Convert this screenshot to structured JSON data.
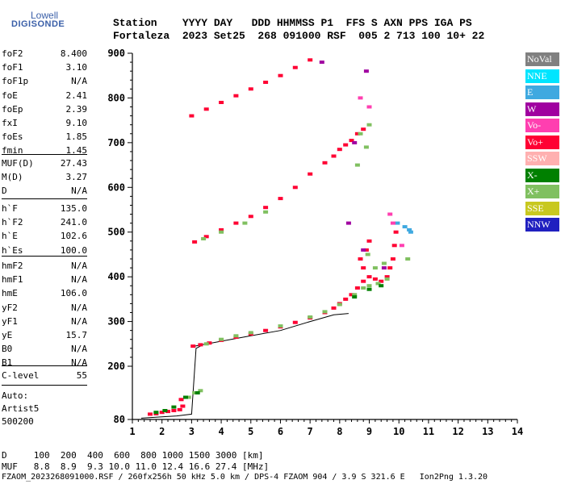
{
  "logo": {
    "line1": "Lowell",
    "line2": "DIGISONDE"
  },
  "header": {
    "row1": "Station    YYYY DAY   DDD HHMMSS P1  FFS S AXN PPS IGA PS",
    "row2": "Fortaleza  2023 Set25  268 091000 RSF  005 2 713 100 10+ 22"
  },
  "params_a": [
    {
      "key": "foF2",
      "value": "8.400"
    },
    {
      "key": "foF1",
      "value": "3.10"
    },
    {
      "key": "foF1p",
      "value": "N/A"
    },
    {
      "key": "foE",
      "value": "2.41"
    },
    {
      "key": "foEp",
      "value": "2.39"
    },
    {
      "key": "fxI",
      "value": "9.10"
    },
    {
      "key": "foEs",
      "value": "1.85"
    },
    {
      "key": "fmin",
      "value": "1.45"
    }
  ],
  "params_b": [
    {
      "key": "MUF(D)",
      "value": "27.43"
    },
    {
      "key": "M(D)",
      "value": "3.27"
    },
    {
      "key": "D",
      "value": "N/A"
    }
  ],
  "params_c": [
    {
      "key": "h`F",
      "value": "135.0"
    },
    {
      "key": "h`F2",
      "value": "241.0"
    },
    {
      "key": "h`E",
      "value": "102.6"
    },
    {
      "key": "h`Es",
      "value": "100.0"
    }
  ],
  "params_d": [
    {
      "key": "hmF2",
      "value": "N/A"
    },
    {
      "key": "hmF1",
      "value": "N/A"
    },
    {
      "key": "hmE",
      "value": "106.0"
    },
    {
      "key": "yF2",
      "value": "N/A"
    },
    {
      "key": "yF1",
      "value": "N/A"
    },
    {
      "key": "yE",
      "value": "15.7"
    },
    {
      "key": "B0",
      "value": "N/A"
    },
    {
      "key": "B1",
      "value": "N/A"
    }
  ],
  "params_e": [
    {
      "key": "C-level",
      "value": "55"
    }
  ],
  "auto": {
    "line1": "Auto:",
    "line2": "Artist5",
    "line3": "500200"
  },
  "footer": {
    "row1": "D     100  200  400  600  800 1000 1500 3000 [km]",
    "row2": "MUF   8.8  8.9  9.3 10.0 11.0 12.4 16.6 27.4 [MHz]",
    "row3": "FZAOM_2023268091000.RSF / 260fx256h 50 kHz 5.0 km / DPS-4 FZAOM 904 / 3.9 S 321.6 E   Ion2Png 1.3.20"
  },
  "legend": [
    {
      "label": "NoVal",
      "color": "#808080"
    },
    {
      "label": "NNE",
      "color": "#00e5ff"
    },
    {
      "label": "E",
      "color": "#3fa9e0"
    },
    {
      "label": "W",
      "color": "#a000a0"
    },
    {
      "label": "Vo-",
      "color": "#ff3fb0"
    },
    {
      "label": "Vo+",
      "color": "#ff0033"
    },
    {
      "label": "SSW",
      "color": "#ffb0b0"
    },
    {
      "label": "X-",
      "color": "#008000"
    },
    {
      "label": "X+",
      "color": "#80c060"
    },
    {
      "label": "SSE",
      "color": "#c8c820"
    },
    {
      "label": "NNW",
      "color": "#2020c0"
    }
  ],
  "chart_data": {
    "type": "scatter",
    "title": "",
    "xlabel": "",
    "ylabel": "",
    "xlim": [
      1,
      14
    ],
    "ylim": [
      80,
      900
    ],
    "x_ticks": [
      1,
      2,
      3,
      4,
      5,
      6,
      7,
      8,
      9,
      10,
      11,
      12,
      13,
      14
    ],
    "y_ticks": [
      80,
      200,
      300,
      400,
      500,
      600,
      700,
      800,
      900
    ],
    "grid": false,
    "legend_position": "right",
    "series": [
      {
        "name": "Vo+",
        "color": "#ff0033",
        "points": [
          [
            1.6,
            92
          ],
          [
            1.8,
            93
          ],
          [
            2.0,
            96
          ],
          [
            2.2,
            98
          ],
          [
            2.4,
            100
          ],
          [
            2.6,
            102
          ],
          [
            2.7,
            110
          ],
          [
            2.65,
            125
          ],
          [
            3.05,
            245
          ],
          [
            3.3,
            248
          ],
          [
            3.6,
            252
          ],
          [
            4.0,
            258
          ],
          [
            4.5,
            265
          ],
          [
            5.0,
            272
          ],
          [
            5.5,
            280
          ],
          [
            6.0,
            288
          ],
          [
            6.5,
            298
          ],
          [
            7.0,
            308
          ],
          [
            7.5,
            320
          ],
          [
            7.8,
            330
          ],
          [
            8.0,
            340
          ],
          [
            8.2,
            350
          ],
          [
            8.4,
            360
          ],
          [
            8.6,
            375
          ],
          [
            8.8,
            390
          ],
          [
            9.0,
            400
          ],
          [
            9.2,
            395
          ],
          [
            9.4,
            390
          ],
          [
            9.6,
            400
          ],
          [
            9.7,
            420
          ],
          [
            9.8,
            440
          ],
          [
            9.85,
            470
          ],
          [
            9.9,
            500
          ],
          [
            8.8,
            420
          ],
          [
            8.9,
            460
          ],
          [
            9.0,
            480
          ],
          [
            8.7,
            440
          ],
          [
            3.1,
            478
          ],
          [
            3.5,
            490
          ],
          [
            4.0,
            505
          ],
          [
            4.5,
            520
          ],
          [
            5.0,
            535
          ],
          [
            5.5,
            555
          ],
          [
            6.0,
            575
          ],
          [
            6.5,
            600
          ],
          [
            7.0,
            630
          ],
          [
            7.5,
            655
          ],
          [
            7.8,
            670
          ],
          [
            8.0,
            685
          ],
          [
            8.2,
            695
          ],
          [
            8.4,
            705
          ],
          [
            8.6,
            720
          ],
          [
            8.8,
            730
          ],
          [
            3.0,
            760
          ],
          [
            3.5,
            775
          ],
          [
            4.0,
            790
          ],
          [
            4.5,
            805
          ],
          [
            5.0,
            820
          ],
          [
            5.5,
            835
          ],
          [
            6.0,
            850
          ],
          [
            6.5,
            868
          ],
          [
            7.0,
            885
          ]
        ]
      },
      {
        "name": "X+",
        "color": "#80c060",
        "points": [
          [
            2.9,
            130
          ],
          [
            3.1,
            140
          ],
          [
            3.3,
            145
          ],
          [
            3.5,
            250
          ],
          [
            4.0,
            260
          ],
          [
            4.5,
            268
          ],
          [
            5.0,
            275
          ],
          [
            6.0,
            290
          ],
          [
            7.0,
            310
          ],
          [
            7.5,
            322
          ],
          [
            8.0,
            338
          ],
          [
            8.5,
            360
          ],
          [
            8.8,
            375
          ],
          [
            9.0,
            380
          ],
          [
            9.3,
            385
          ],
          [
            9.6,
            395
          ],
          [
            3.4,
            485
          ],
          [
            4.0,
            500
          ],
          [
            4.8,
            520
          ],
          [
            5.5,
            545
          ],
          [
            8.6,
            650
          ],
          [
            8.9,
            690
          ],
          [
            8.7,
            720
          ],
          [
            9.0,
            740
          ],
          [
            9.2,
            420
          ],
          [
            9.5,
            430
          ],
          [
            10.3,
            440
          ],
          [
            8.95,
            450
          ]
        ]
      },
      {
        "name": "X-",
        "color": "#008000",
        "points": [
          [
            1.8,
            96
          ],
          [
            2.1,
            100
          ],
          [
            2.4,
            108
          ],
          [
            2.8,
            130
          ],
          [
            3.2,
            140
          ],
          [
            8.5,
            355
          ],
          [
            9.0,
            372
          ],
          [
            9.4,
            380
          ]
        ]
      },
      {
        "name": "E",
        "color": "#3fa9e0",
        "points": [
          [
            9.95,
            520
          ],
          [
            10.2,
            512
          ],
          [
            10.35,
            505
          ],
          [
            10.4,
            500
          ]
        ]
      },
      {
        "name": "W",
        "color": "#a000a0",
        "points": [
          [
            7.4,
            880
          ],
          [
            8.9,
            860
          ],
          [
            8.5,
            700
          ],
          [
            8.3,
            520
          ],
          [
            8.8,
            460
          ],
          [
            9.5,
            420
          ]
        ]
      },
      {
        "name": "Vo-",
        "color": "#ff3fb0",
        "points": [
          [
            9.7,
            540
          ],
          [
            9.8,
            520
          ],
          [
            10.1,
            470
          ],
          [
            8.7,
            800
          ],
          [
            9.0,
            780
          ]
        ]
      }
    ],
    "trace_lines": [
      {
        "name": "profile",
        "points": [
          [
            1.3,
            83
          ],
          [
            2.0,
            86
          ],
          [
            2.5,
            88
          ],
          [
            3.0,
            92
          ],
          [
            3.15,
            240
          ],
          [
            3.3,
            245
          ]
        ]
      },
      {
        "name": "virtual-height",
        "points": [
          [
            3.1,
            245
          ],
          [
            4.0,
            256
          ],
          [
            5.0,
            268
          ],
          [
            6.0,
            280
          ],
          [
            7.0,
            300
          ],
          [
            7.8,
            315
          ],
          [
            8.3,
            318
          ]
        ]
      }
    ]
  }
}
